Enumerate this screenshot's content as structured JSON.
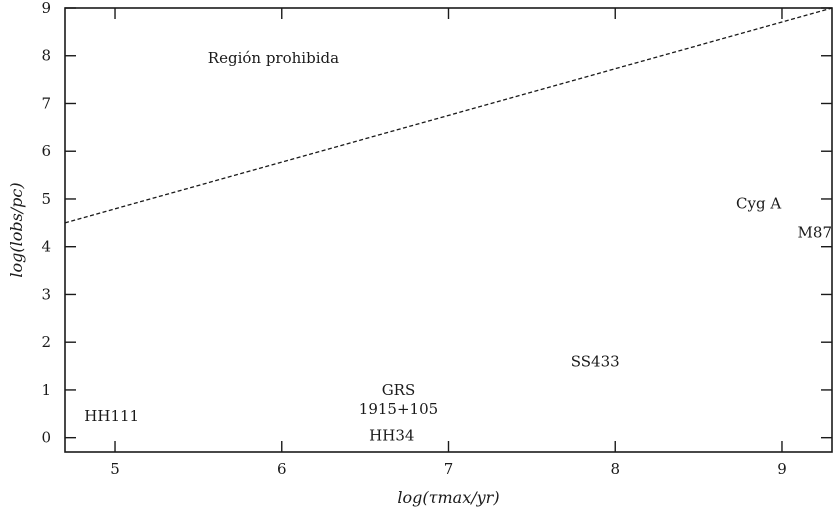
{
  "chart_data": {
    "type": "scatter",
    "title": "",
    "xlabel": "log(τmax/yr)",
    "ylabel": "log(lobs/pc)",
    "xlim": [
      4.7,
      9.3
    ],
    "ylim": [
      -0.3,
      9
    ],
    "grid": false,
    "x_ticks": [
      5,
      6,
      7,
      8,
      9
    ],
    "y_ticks": [
      0,
      1,
      2,
      3,
      4,
      5,
      6,
      7,
      8,
      9
    ],
    "x_tick_labels": [
      "5",
      "6",
      "7",
      "8",
      "9"
    ],
    "y_tick_labels": [
      "0",
      "1",
      "2",
      "3",
      "4",
      "5",
      "6",
      "7",
      "8",
      "9"
    ],
    "boundary_line": {
      "style": "dashed",
      "x": [
        4.7,
        9.3
      ],
      "y": [
        4.5,
        9.0
      ]
    },
    "region_label": {
      "text": "Región prohibida",
      "x": 5.95,
      "y": 7.95
    },
    "annotations": [
      {
        "text": "HH111",
        "x": 4.98,
        "y": 0.45
      },
      {
        "text": "GRS",
        "x": 6.7,
        "y": 1.0
      },
      {
        "text": "1915+105",
        "x": 6.7,
        "y": 0.6
      },
      {
        "text": "HH34",
        "x": 6.66,
        "y": 0.05
      },
      {
        "text": "SS433",
        "x": 7.88,
        "y": 1.6
      },
      {
        "text": "Cyg A",
        "x": 8.86,
        "y": 4.9
      },
      {
        "text": "M87",
        "x": 9.3,
        "y": 4.3
      }
    ]
  }
}
